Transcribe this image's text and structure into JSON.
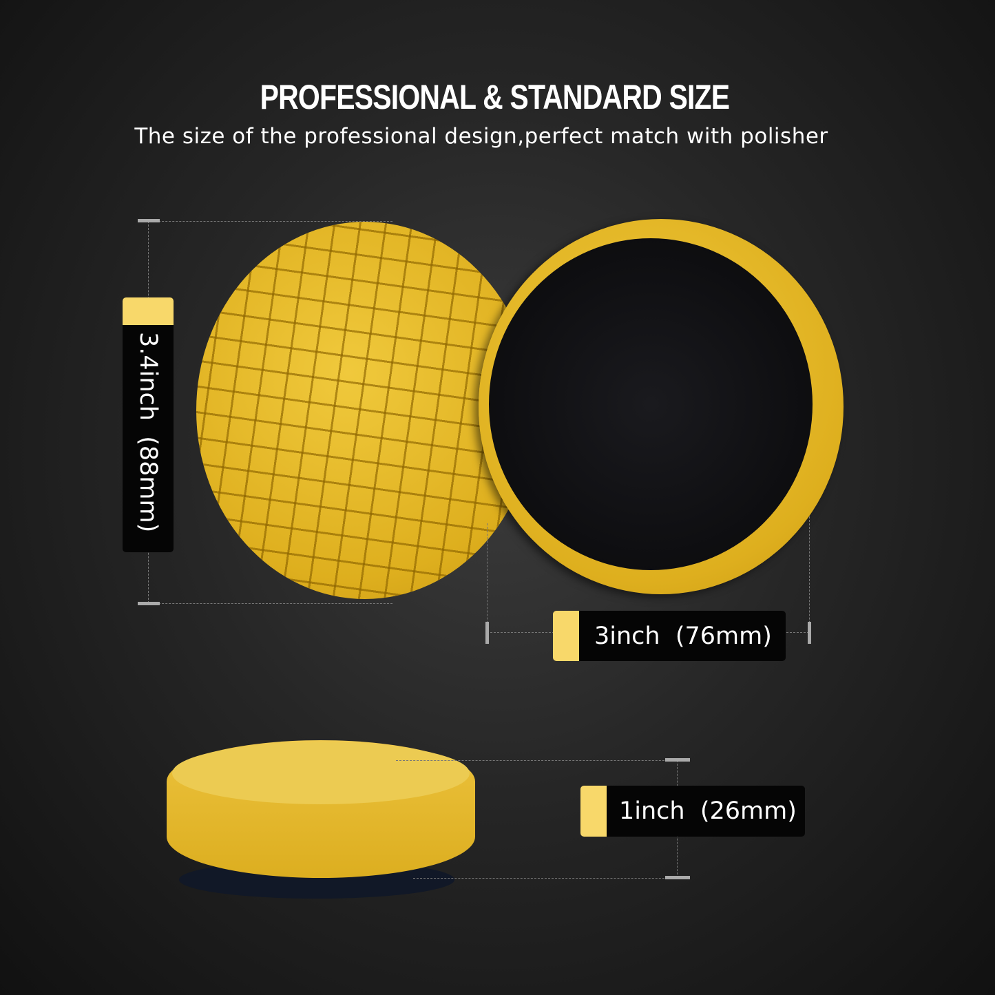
{
  "header": {
    "title": "PROFESSIONAL & STANDARD SIZE",
    "subtitle": "The size of the professional design,perfect match with polisher"
  },
  "dimensions": {
    "diameter": "3.4inch  (88mm)",
    "backing": "3inch  (76mm)",
    "thickness": "1inch  (26mm)"
  },
  "colors": {
    "pad": "#e2b424",
    "label_accent": "#f8d86a",
    "label_bg": "#050505",
    "velcro": "#0d0d10"
  }
}
